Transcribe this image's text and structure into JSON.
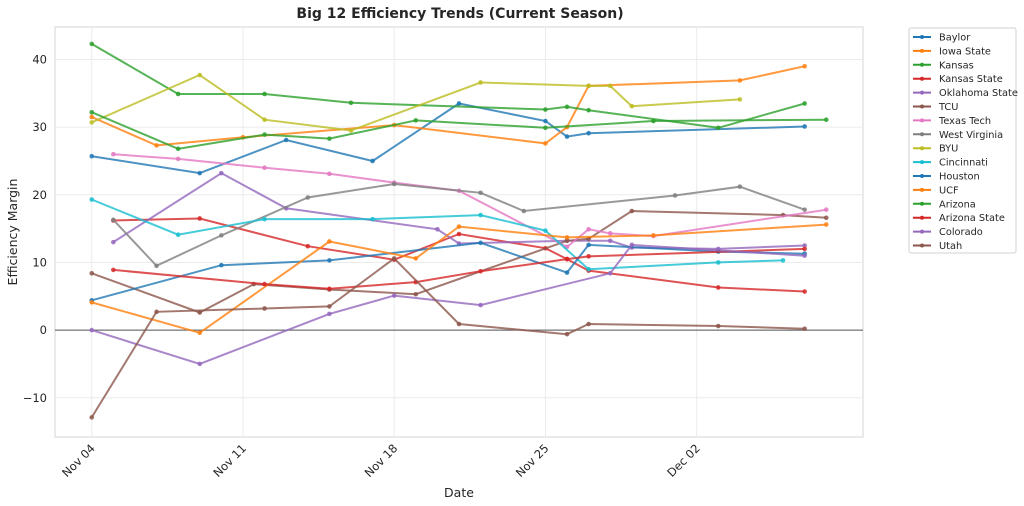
{
  "chart_data": {
    "type": "line",
    "title": "Big 12 Efficiency Trends (Current Season)",
    "xlabel": "Date",
    "ylabel": "Efficiency Margin",
    "x_unit": "days since Nov 04",
    "xlim": [
      -1.7,
      35.7
    ],
    "ylim": [
      -15.8,
      44.8
    ],
    "x_ticks": [
      {
        "value": 0,
        "label": "Nov 04"
      },
      {
        "value": 7,
        "label": "Nov 11"
      },
      {
        "value": 14,
        "label": "Nov 18"
      },
      {
        "value": 21,
        "label": "Nov 25"
      },
      {
        "value": 28,
        "label": "Dec 02"
      }
    ],
    "y_ticks": [
      {
        "value": -10,
        "label": "−10"
      },
      {
        "value": 0,
        "label": "0"
      },
      {
        "value": 10,
        "label": "10"
      },
      {
        "value": 20,
        "label": "20"
      },
      {
        "value": 30,
        "label": "30"
      },
      {
        "value": 40,
        "label": "40"
      }
    ],
    "grid": true,
    "zero_line": true,
    "legend_position": "outside-right-top",
    "series": [
      {
        "name": "Baylor",
        "color": "#1f77b4",
        "x": [
          0,
          5,
          9,
          13,
          17,
          21,
          22,
          23,
          33
        ],
        "y": [
          25.7,
          23.2,
          28.1,
          25.0,
          33.5,
          30.9,
          28.6,
          29.1,
          30.1
        ]
      },
      {
        "name": "Iowa State",
        "color": "#ff7f0e",
        "x": [
          0,
          3,
          7,
          14,
          21,
          22,
          23,
          30,
          33
        ],
        "y": [
          31.5,
          27.3,
          28.5,
          30.3,
          27.6,
          30.0,
          36.1,
          36.9,
          39.0
        ]
      },
      {
        "name": "Kansas",
        "color": "#2ca02c",
        "x": [
          0,
          4,
          8,
          12,
          21,
          22,
          23,
          29,
          33
        ],
        "y": [
          42.3,
          34.9,
          34.9,
          33.6,
          32.6,
          33.0,
          32.5,
          29.9,
          33.5
        ]
      },
      {
        "name": "Kansas State",
        "color": "#d62728",
        "x": [
          1,
          5,
          10,
          14,
          17,
          21,
          22,
          23,
          29,
          33
        ],
        "y": [
          16.2,
          16.5,
          12.4,
          10.4,
          14.2,
          12.1,
          10.5,
          8.8,
          6.3,
          5.7
        ]
      },
      {
        "name": "Oklahoma State",
        "color": "#9467bd",
        "x": [
          1,
          6,
          9,
          16,
          17,
          22,
          24,
          25,
          29,
          33
        ],
        "y": [
          13.0,
          23.2,
          18.0,
          14.9,
          12.8,
          13.2,
          13.2,
          12.2,
          12.0,
          12.5
        ]
      },
      {
        "name": "TCU",
        "color": "#8c564b",
        "x": [
          0,
          5,
          7.5,
          11,
          15,
          22,
          23,
          25,
          32,
          34
        ],
        "y": [
          8.4,
          2.6,
          6.8,
          6.0,
          5.3,
          13.2,
          13.5,
          17.6,
          17.0,
          16.6
        ]
      },
      {
        "name": "Texas Tech",
        "color": "#e377c2",
        "x": [
          1,
          4,
          8,
          11,
          14,
          17,
          22,
          23,
          24,
          26,
          34
        ],
        "y": [
          26.0,
          25.3,
          24.0,
          23.1,
          21.8,
          20.6,
          12.3,
          14.9,
          14.3,
          13.9,
          17.8
        ]
      },
      {
        "name": "West Virginia",
        "color": "#7f7f7f",
        "x": [
          1,
          3,
          6,
          10,
          14,
          18,
          20,
          27,
          30,
          33
        ],
        "y": [
          16.3,
          9.5,
          14.0,
          19.6,
          21.6,
          20.3,
          17.6,
          19.9,
          21.2,
          17.8
        ]
      },
      {
        "name": "BYU",
        "color": "#bcbd22",
        "x": [
          0,
          5,
          8,
          12,
          18,
          23,
          24,
          25,
          30
        ],
        "y": [
          30.7,
          37.7,
          31.1,
          29.5,
          36.6,
          36.1,
          36.1,
          33.1,
          34.1
        ]
      },
      {
        "name": "Cincinnati",
        "color": "#17becf",
        "x": [
          0,
          4,
          8,
          13,
          18,
          21,
          23,
          29,
          32
        ],
        "y": [
          19.3,
          14.1,
          16.4,
          16.4,
          17.0,
          14.7,
          9.0,
          10.0,
          10.3
        ]
      },
      {
        "name": "Houston",
        "color": "#1f77b4",
        "x": [
          0,
          6,
          11,
          18,
          22,
          23,
          29,
          33
        ],
        "y": [
          4.4,
          9.6,
          10.3,
          12.9,
          8.5,
          12.6,
          11.6,
          11.3
        ]
      },
      {
        "name": "UCF",
        "color": "#ff7f0e",
        "x": [
          0,
          5,
          11,
          15,
          17,
          22,
          26,
          34
        ],
        "y": [
          4.1,
          -0.4,
          13.1,
          10.6,
          15.3,
          13.7,
          14.0,
          15.6
        ]
      },
      {
        "name": "Arizona",
        "color": "#2ca02c",
        "x": [
          0,
          4,
          8,
          11,
          15,
          21,
          26,
          34
        ],
        "y": [
          32.2,
          26.8,
          28.9,
          28.3,
          31.0,
          29.9,
          30.9,
          31.1
        ]
      },
      {
        "name": "Arizona State",
        "color": "#d62728",
        "x": [
          1,
          8,
          11,
          15,
          18,
          22,
          23,
          33
        ],
        "y": [
          8.9,
          6.8,
          6.1,
          7.1,
          8.7,
          10.5,
          10.9,
          12.0
        ]
      },
      {
        "name": "Colorado",
        "color": "#9467bd",
        "x": [
          0,
          5,
          11,
          14,
          18,
          24,
          25,
          33
        ],
        "y": [
          0.0,
          -5.0,
          2.4,
          5.1,
          3.7,
          8.4,
          12.6,
          11.0
        ]
      },
      {
        "name": "Utah",
        "color": "#8c564b",
        "x": [
          0,
          3,
          8,
          11,
          14,
          17,
          22,
          23,
          29,
          33
        ],
        "y": [
          -12.9,
          2.7,
          3.2,
          3.5,
          10.6,
          0.9,
          -0.6,
          0.9,
          0.6,
          0.2
        ]
      }
    ]
  }
}
